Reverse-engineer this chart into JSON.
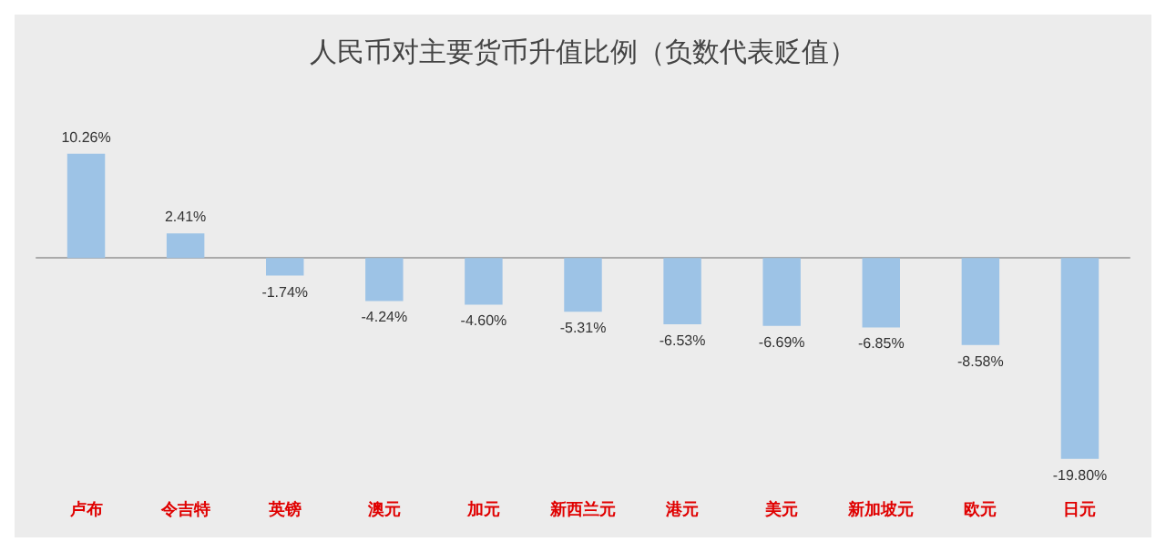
{
  "chart_data": {
    "type": "bar",
    "title": "人民币对主要货币升值比例（负数代表贬值）",
    "categories": [
      "卢布",
      "令吉特",
      "英镑",
      "澳元",
      "加元",
      "新西兰元",
      "港元",
      "美元",
      "新加坡元",
      "欧元",
      "日元"
    ],
    "values": [
      10.26,
      2.41,
      -1.74,
      -4.24,
      -4.6,
      -5.31,
      -6.53,
      -6.69,
      -6.85,
      -8.58,
      -19.8
    ],
    "value_labels": [
      "10.26%",
      "2.41%",
      "-1.74%",
      "-4.24%",
      "-4.60%",
      "-5.31%",
      "-6.53%",
      "-6.69%",
      "-6.85%",
      "-8.58%",
      "-19.80%"
    ],
    "color": "#9dc3e6"
  }
}
